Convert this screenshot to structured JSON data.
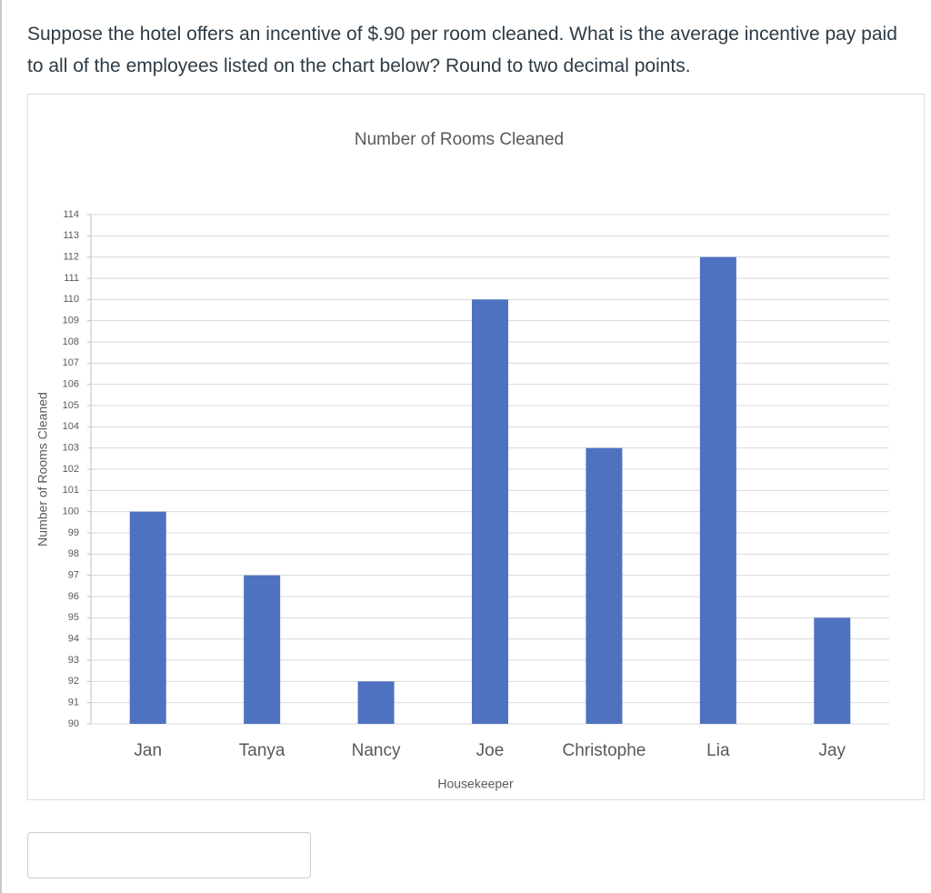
{
  "question": "Suppose the hotel offers an incentive of $.90 per room cleaned. What is the average incentive pay paid to all of the employees listed on the chart below? Round to two decimal points.",
  "chart_data": {
    "type": "bar",
    "title": "Number of Rooms Cleaned",
    "x_label": "Housekeeper",
    "y_label": "Number of Rooms Cleaned",
    "categories": [
      "Jan",
      "Tanya",
      "Nancy",
      "Joe",
      "Christophe",
      "Lia",
      "Jay"
    ],
    "values": [
      100,
      97,
      92,
      110,
      103,
      112,
      95
    ],
    "color": "#4e72bf",
    "ylim": [
      90,
      114
    ],
    "yticks": [
      90,
      91,
      92,
      93,
      94,
      95,
      96,
      97,
      98,
      99,
      100,
      101,
      102,
      103,
      104,
      105,
      106,
      107,
      108,
      109,
      110,
      111,
      112,
      113,
      114
    ],
    "grid": true
  }
}
